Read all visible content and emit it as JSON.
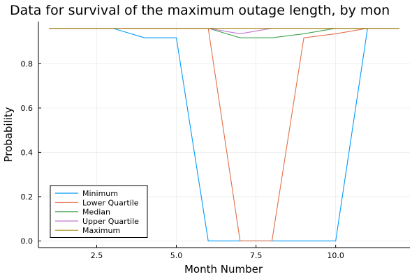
{
  "chart_data": {
    "type": "line",
    "title": "Data for survival of the maximum outage length, by mon",
    "xlabel": "Month Number",
    "ylabel": "Probability",
    "xlim": [
      0.67,
      12.33
    ],
    "ylim": [
      -0.03,
      0.99
    ],
    "xticks": [
      2.5,
      5.0,
      7.5,
      10.0
    ],
    "xtick_labels": [
      "2.5",
      "5.0",
      "7.5",
      "10.0"
    ],
    "yticks": [
      0.0,
      0.2,
      0.4,
      0.6,
      0.8
    ],
    "ytick_labels": [
      "0.0",
      "0.2",
      "0.4",
      "0.6",
      "0.8"
    ],
    "grid": true,
    "legend_position": "bottom-left",
    "x": [
      1,
      2,
      3,
      4,
      5,
      6,
      7,
      8,
      9,
      10,
      11,
      12
    ],
    "series": [
      {
        "name": "Minimum",
        "color": "#009AFA",
        "values": [
          0.96,
          0.96,
          0.96,
          0.917,
          0.917,
          0.0,
          0.0,
          0.0,
          0.0,
          0.0,
          0.96,
          0.96
        ]
      },
      {
        "name": "Lower Quartile",
        "color": "#E36F47",
        "values": [
          0.96,
          0.96,
          0.96,
          0.96,
          0.96,
          0.96,
          0.0,
          0.0,
          0.917,
          0.935,
          0.96,
          0.96
        ]
      },
      {
        "name": "Median",
        "color": "#3EA44E",
        "values": [
          0.96,
          0.96,
          0.96,
          0.96,
          0.96,
          0.96,
          0.917,
          0.917,
          0.935,
          0.96,
          0.96,
          0.96
        ]
      },
      {
        "name": "Upper Quartile",
        "color": "#C371D2",
        "values": [
          0.96,
          0.96,
          0.96,
          0.96,
          0.96,
          0.96,
          0.935,
          0.96,
          0.96,
          0.96,
          0.96,
          0.96
        ]
      },
      {
        "name": "Maximum",
        "color": "#AC8D18",
        "values": [
          0.96,
          0.96,
          0.96,
          0.96,
          0.96,
          0.96,
          0.96,
          0.96,
          0.96,
          0.96,
          0.96,
          0.96
        ]
      }
    ]
  }
}
